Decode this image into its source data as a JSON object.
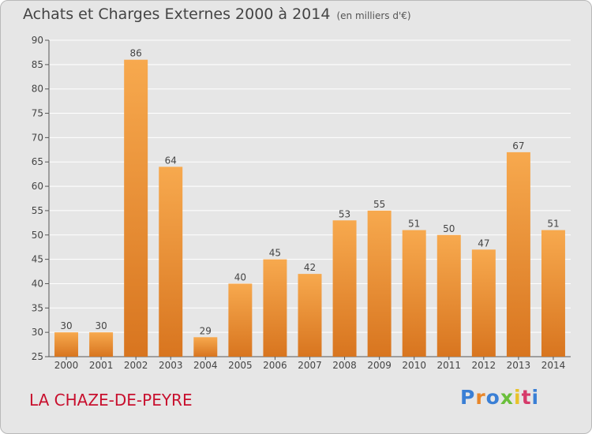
{
  "header": {
    "title": "Achats et Charges Externes 2000 à 2014",
    "unit": "(en milliers d'€)"
  },
  "footer": {
    "commune": "LA CHAZE-DE-PEYRE",
    "logo_text": "Proxiti",
    "logo_colors": [
      "#3a7fd5",
      "#e8862a",
      "#3a7fd5",
      "#6abf3b",
      "#e8c22a",
      "#d63a6a",
      "#3a7fd5"
    ]
  },
  "colors": {
    "bar_top": "#f7a94e",
    "bar_bottom": "#d8751f",
    "grid": "#ffffff",
    "background": "#e6e6e6",
    "axis": "#555555",
    "commune": "#c8102e"
  },
  "chart_data": {
    "type": "bar",
    "categories": [
      "2000",
      "2001",
      "2002",
      "2003",
      "2004",
      "2005",
      "2006",
      "2007",
      "2008",
      "2009",
      "2010",
      "2011",
      "2012",
      "2013",
      "2014"
    ],
    "values": [
      30,
      30,
      86,
      64,
      29,
      40,
      45,
      42,
      53,
      55,
      51,
      50,
      47,
      67,
      51
    ],
    "ylim": [
      25,
      90
    ],
    "yticks": [
      25,
      30,
      35,
      40,
      45,
      50,
      55,
      60,
      65,
      70,
      75,
      80,
      85,
      90
    ],
    "grid": true,
    "data_labels": true,
    "xlabel": "",
    "ylabel": ""
  }
}
